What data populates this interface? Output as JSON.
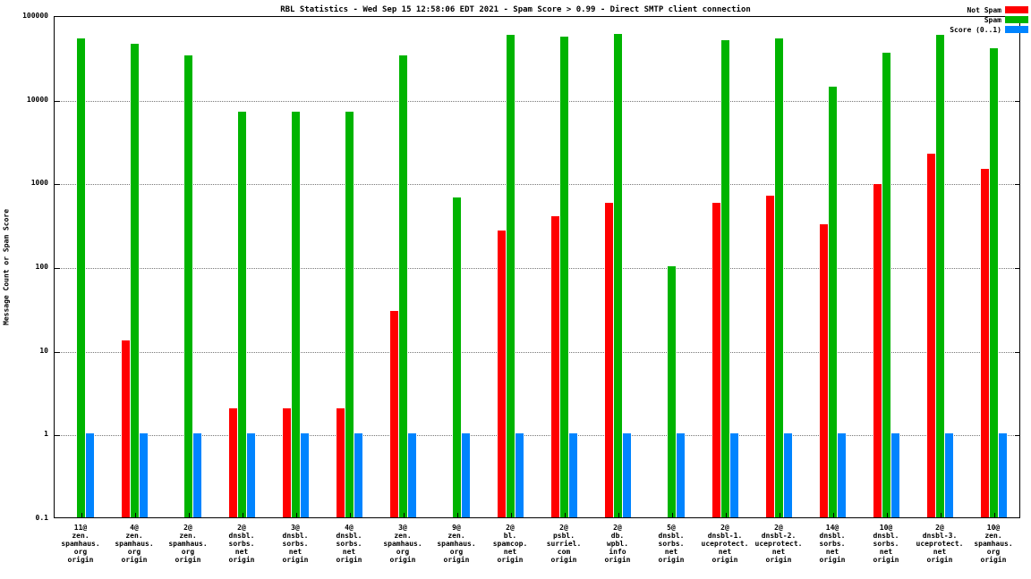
{
  "chart": {
    "title": "RBL Statistics - Wed Sep 15 12:58:06 EDT 2021 - Spam Score > 0.99 - Direct SMTP client connection",
    "ylabel": "Message Count or Spam Score",
    "y_ticks": [
      "100000",
      "10000",
      "1000",
      "100",
      "10",
      "1",
      "0.1"
    ]
  },
  "chart_data": {
    "type": "bar",
    "scale": "log",
    "ylim": [
      0.1,
      100000
    ],
    "grid": true,
    "legend_position": "top-right",
    "categories": [
      [
        "11@",
        "zen.",
        "spamhaus.",
        "org",
        "origin"
      ],
      [
        "4@",
        "zen.",
        "spamhaus.",
        "org",
        "origin"
      ],
      [
        "2@",
        "zen.",
        "spamhaus.",
        "org",
        "origin"
      ],
      [
        "2@",
        "dnsbl.",
        "sorbs.",
        "net",
        "origin"
      ],
      [
        "3@",
        "dnsbl.",
        "sorbs.",
        "net",
        "origin"
      ],
      [
        "4@",
        "dnsbl.",
        "sorbs.",
        "net",
        "origin"
      ],
      [
        "3@",
        "zen.",
        "spamhaus.",
        "org",
        "origin"
      ],
      [
        "9@",
        "zen.",
        "spamhaus.",
        "org",
        "origin"
      ],
      [
        "2@",
        "bl.",
        "spamcop.",
        "net",
        "origin"
      ],
      [
        "2@",
        "psbl.",
        "surriel.",
        "com",
        "origin"
      ],
      [
        "2@",
        "db.",
        "wpbl.",
        "info",
        "origin"
      ],
      [
        "5@",
        "dnsbl.",
        "sorbs.",
        "net",
        "origin"
      ],
      [
        "2@",
        "dnsbl-1.",
        "uceprotect.",
        "net",
        "origin"
      ],
      [
        "2@",
        "dnsbl-2.",
        "uceprotect.",
        "net",
        "origin"
      ],
      [
        "14@",
        "dnsbl.",
        "sorbs.",
        "net",
        "origin"
      ],
      [
        "10@",
        "dnsbl.",
        "sorbs.",
        "net",
        "origin"
      ],
      [
        "2@",
        "dnsbl-3.",
        "uceprotect.",
        "net",
        "origin"
      ],
      [
        "10@",
        "zen.",
        "spamhaus.",
        "org",
        "origin"
      ]
    ],
    "series": [
      {
        "name": "Not Spam",
        "color": "#ff0000",
        "values": [
          null,
          13,
          null,
          2,
          2,
          2,
          29,
          null,
          270,
          400,
          580,
          null,
          570,
          700,
          320,
          950,
          2200,
          1450
        ]
      },
      {
        "name": "Spam",
        "color": "#00b400",
        "values": [
          53000,
          45000,
          33000,
          7000,
          7000,
          7000,
          33000,
          670,
          58000,
          55000,
          60000,
          100,
          50000,
          53000,
          14000,
          36000,
          58000,
          40000
        ]
      },
      {
        "name": "Score (0..1)",
        "color": "#0084ff",
        "values": [
          1,
          1,
          1,
          1,
          1,
          1,
          1,
          1,
          1,
          1,
          1,
          1,
          1,
          1,
          1,
          1,
          1,
          1
        ]
      }
    ]
  }
}
